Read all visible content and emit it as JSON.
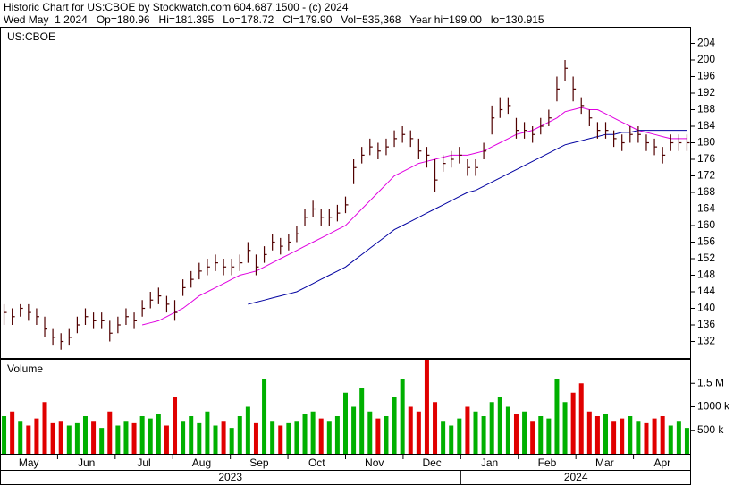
{
  "chart_data": {
    "type": "ohlc",
    "title": "Historic Chart for US:CBOE by Stockwatch.com 604.687.1500 - (c) 2024",
    "subtitle": "Wed May  1 2024   Op=180.96   Hi=181.395   Lo=178.72   Cl=179.90   Vol=535,368   Year hi=199.00   lo=130.915",
    "symbol": "US:CBOE",
    "color": "#500000",
    "months": [
      "May",
      "Jun",
      "Jul",
      "Aug",
      "Sep",
      "Oct",
      "Nov",
      "Dec",
      "Jan",
      "Feb",
      "Mar",
      "Apr"
    ],
    "years": [
      "2023",
      "2024"
    ],
    "high": [
      141,
      140,
      141,
      141,
      140,
      138,
      135,
      134,
      135,
      138,
      140,
      139,
      139,
      137,
      138,
      140,
      139,
      142,
      144,
      145,
      143,
      142,
      147,
      149,
      151,
      152,
      153,
      152,
      152,
      153,
      156,
      153,
      155,
      158,
      157,
      158,
      160,
      164,
      166,
      164,
      164,
      165,
      167,
      176,
      179,
      181,
      180,
      181,
      183,
      184,
      183,
      181,
      179,
      176,
      177,
      178,
      179,
      176,
      176,
      180,
      189,
      191,
      191,
      186,
      185,
      184,
      186,
      188,
      196,
      200,
      196,
      191,
      188,
      185,
      185,
      183,
      182,
      184,
      184,
      182,
      181,
      179,
      182,
      182,
      182
    ],
    "low": [
      136,
      136,
      138,
      137,
      136,
      133,
      131,
      130,
      131,
      134,
      136,
      135,
      135,
      132,
      134,
      136,
      135,
      138,
      140,
      141,
      139,
      137,
      143,
      145,
      147,
      148,
      149,
      148,
      148,
      149,
      151,
      148,
      151,
      154,
      153,
      154,
      156,
      160,
      162,
      160,
      160,
      161,
      163,
      170,
      175,
      177,
      176,
      177,
      179,
      180,
      179,
      176,
      174,
      168,
      173,
      174,
      175,
      172,
      172,
      176,
      182,
      186,
      187,
      181,
      181,
      180,
      182,
      184,
      190,
      195,
      190,
      187,
      184,
      181,
      181,
      179,
      178,
      180,
      180,
      178,
      177,
      175,
      178,
      178,
      178
    ],
    "close": [
      139,
      138,
      140,
      139,
      138,
      135,
      133,
      132,
      133,
      136,
      138,
      137,
      137,
      134,
      136,
      138,
      137,
      140,
      142,
      143,
      141,
      139,
      145,
      147,
      149,
      150,
      151,
      150,
      150,
      151,
      154,
      150,
      153,
      156,
      155,
      156,
      158,
      162,
      164,
      162,
      162,
      163,
      165,
      174,
      177,
      179,
      178,
      179,
      181,
      182,
      181,
      178,
      177,
      171,
      175,
      176,
      177,
      174,
      174,
      178,
      186,
      188,
      189,
      183,
      183,
      182,
      184,
      186,
      193,
      198,
      193,
      189,
      186,
      183,
      183,
      181,
      180,
      182,
      182,
      180,
      179,
      177,
      180,
      180,
      180
    ],
    "ylim": [
      128,
      208
    ],
    "yticks": [
      132,
      136,
      140,
      144,
      148,
      152,
      156,
      160,
      164,
      168,
      172,
      176,
      180,
      184,
      188,
      192,
      196,
      200,
      204
    ],
    "moving_averages": [
      {
        "color": "#e000e0",
        "values": [
          null,
          null,
          null,
          null,
          null,
          null,
          null,
          null,
          null,
          null,
          null,
          null,
          null,
          null,
          null,
          null,
          null,
          136,
          136.5,
          137,
          138,
          139,
          140,
          141.5,
          143,
          144,
          145,
          146,
          147,
          148,
          148.5,
          149,
          150,
          151,
          152,
          153,
          154,
          155,
          156,
          157,
          158,
          159,
          160,
          162,
          164,
          166,
          168,
          170,
          172,
          173,
          174,
          175,
          175.5,
          176,
          176.5,
          177,
          177,
          177,
          177.5,
          178,
          179,
          180,
          181,
          182,
          182.5,
          183,
          184,
          185,
          186,
          187.5,
          188,
          188.5,
          188,
          188,
          187,
          186,
          185,
          184,
          183,
          182.5,
          182,
          181.5,
          181,
          181,
          181
        ]
      },
      {
        "color": "#0000a0",
        "values": [
          null,
          null,
          null,
          null,
          null,
          null,
          null,
          null,
          null,
          null,
          null,
          null,
          null,
          null,
          null,
          null,
          null,
          null,
          null,
          null,
          null,
          null,
          null,
          null,
          null,
          null,
          null,
          null,
          null,
          null,
          141,
          141.5,
          142,
          142.5,
          143,
          143.5,
          144,
          145,
          146,
          147,
          148,
          149,
          150,
          151.5,
          153,
          154.5,
          156,
          157.5,
          159,
          160,
          161,
          162,
          163,
          164,
          165,
          166,
          167,
          168,
          168.5,
          169.5,
          170.5,
          171.5,
          172.5,
          173.5,
          174.5,
          175.5,
          176.5,
          177.5,
          178.5,
          179.5,
          180,
          180.5,
          181,
          181.5,
          182,
          182,
          182.5,
          182.5,
          183,
          183,
          183,
          183,
          183,
          183,
          183
        ]
      }
    ],
    "volume": {
      "label": "Volume",
      "up_color": "#00b000",
      "down_color": "#e00000",
      "ylim": [
        0,
        2000000
      ],
      "yticks": [
        {
          "value": 500000,
          "label": "500 k"
        },
        {
          "value": 1000000,
          "label": "1000 k"
        },
        {
          "value": 1500000,
          "label": "1.5 M"
        }
      ],
      "values": [
        800000,
        900000,
        700000,
        600000,
        750000,
        1100000,
        650000,
        700000,
        600000,
        650000,
        800000,
        700000,
        550000,
        900000,
        600000,
        700000,
        650000,
        800000,
        750000,
        850000,
        600000,
        1200000,
        700000,
        800000,
        650000,
        900000,
        600000,
        700000,
        550000,
        800000,
        1000000,
        650000,
        1600000,
        700000,
        600000,
        650000,
        700000,
        850000,
        900000,
        750000,
        700000,
        800000,
        1300000,
        1000000,
        1400000,
        900000,
        750000,
        800000,
        1200000,
        1600000,
        1000000,
        900000,
        2000000,
        1100000,
        700000,
        600000,
        750000,
        1000000,
        900000,
        800000,
        1100000,
        1200000,
        1000000,
        850000,
        900000,
        700000,
        800000,
        750000,
        1600000,
        1100000,
        1300000,
        1500000,
        900000,
        800000,
        850000,
        700000,
        750000,
        800000,
        700000,
        650000,
        750000,
        800000,
        600000,
        700000,
        550000
      ]
    }
  }
}
